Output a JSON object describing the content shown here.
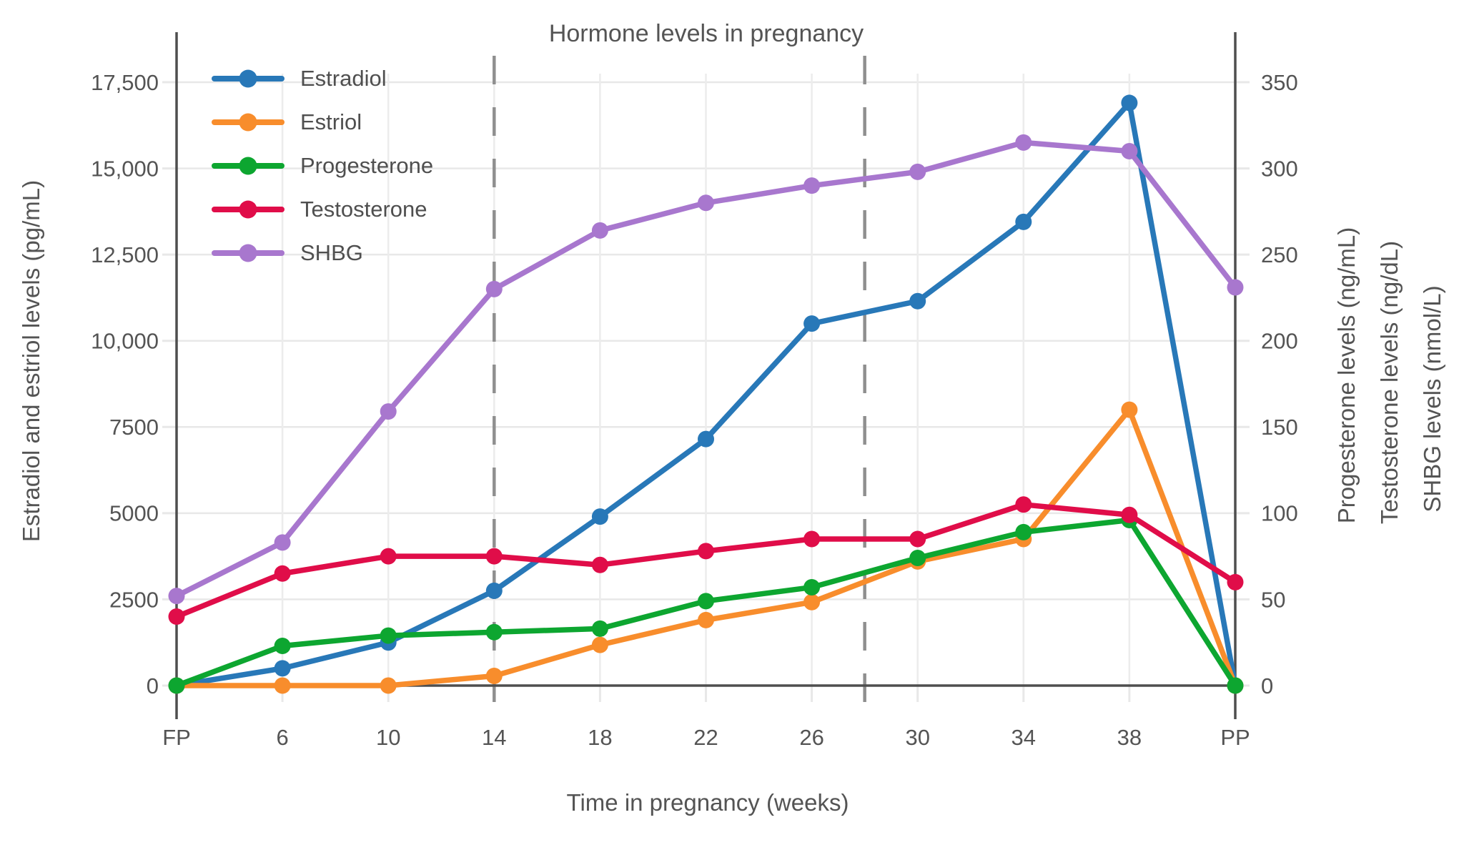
{
  "title": "Hormone levels in pregnancy",
  "axes": {
    "x": {
      "title": "Time in pregnancy (weeks)",
      "categories": [
        "FP",
        "6",
        "10",
        "14",
        "18",
        "22",
        "26",
        "30",
        "34",
        "38",
        "PP"
      ]
    },
    "y_left": {
      "title": "Estradiol and estriol levels (pg/mL)",
      "tick_labels": [
        "0",
        "2500",
        "5000",
        "7500",
        "10,000",
        "12,500",
        "15,000",
        "17,500"
      ],
      "tick_values": [
        0,
        2500,
        5000,
        7500,
        10000,
        12500,
        15000,
        17500
      ],
      "max": 17500
    },
    "y_right": {
      "titles": [
        "Progesterone levels (ng/mL)",
        "Testosterone levels (ng/dL)",
        "SHBG levels (nmol/L)"
      ],
      "tick_labels": [
        "0",
        "50",
        "100",
        "150",
        "200",
        "250",
        "300",
        "350"
      ],
      "tick_values": [
        0,
        50,
        100,
        150,
        200,
        250,
        300,
        350
      ],
      "max": 350
    }
  },
  "chart_data": {
    "type": "line",
    "categories": [
      "FP",
      "6",
      "10",
      "14",
      "18",
      "22",
      "26",
      "30",
      "34",
      "38",
      "PP"
    ],
    "xlabel": "Time in pregnancy (weeks)",
    "ylabel_left": "Estradiol and estriol levels (pg/mL)",
    "ylabel_right": "Progesterone levels (ng/mL); Testosterone levels (ng/dL); SHBG levels (nmol/L)",
    "ylim_left": [
      0,
      17500
    ],
    "ylim_right": [
      0,
      350
    ],
    "grid": true,
    "legend_position": "top-left-inside",
    "series": [
      {
        "name": "Estradiol",
        "axis": "left",
        "unit": "pg/mL",
        "color": "#2878B8",
        "values": [
          0,
          500,
          1250,
          2750,
          4900,
          7150,
          10500,
          11150,
          13450,
          16900,
          0
        ]
      },
      {
        "name": "Estriol",
        "axis": "left",
        "unit": "pg/mL",
        "color": "#F88D2C",
        "values": [
          0,
          0,
          0,
          280,
          1180,
          1900,
          2420,
          3600,
          4250,
          8000,
          0
        ]
      },
      {
        "name": "Progesterone",
        "axis": "right",
        "unit": "ng/mL",
        "color": "#0DA630",
        "values": [
          0,
          23,
          29,
          31,
          33,
          49,
          57,
          74,
          89,
          96,
          0
        ]
      },
      {
        "name": "Testosterone",
        "axis": "right",
        "unit": "ng/dL",
        "color": "#E00D49",
        "values": [
          40,
          65,
          75,
          75,
          70,
          78,
          85,
          85,
          105,
          99,
          60
        ]
      },
      {
        "name": "SHBG",
        "axis": "right",
        "unit": "nmol/L",
        "color": "#A877CE",
        "values": [
          52,
          83,
          159,
          230,
          264,
          280,
          290,
          298,
          315,
          310,
          231
        ]
      }
    ],
    "dashed_vlines_week_index": [
      3,
      6.5
    ]
  }
}
